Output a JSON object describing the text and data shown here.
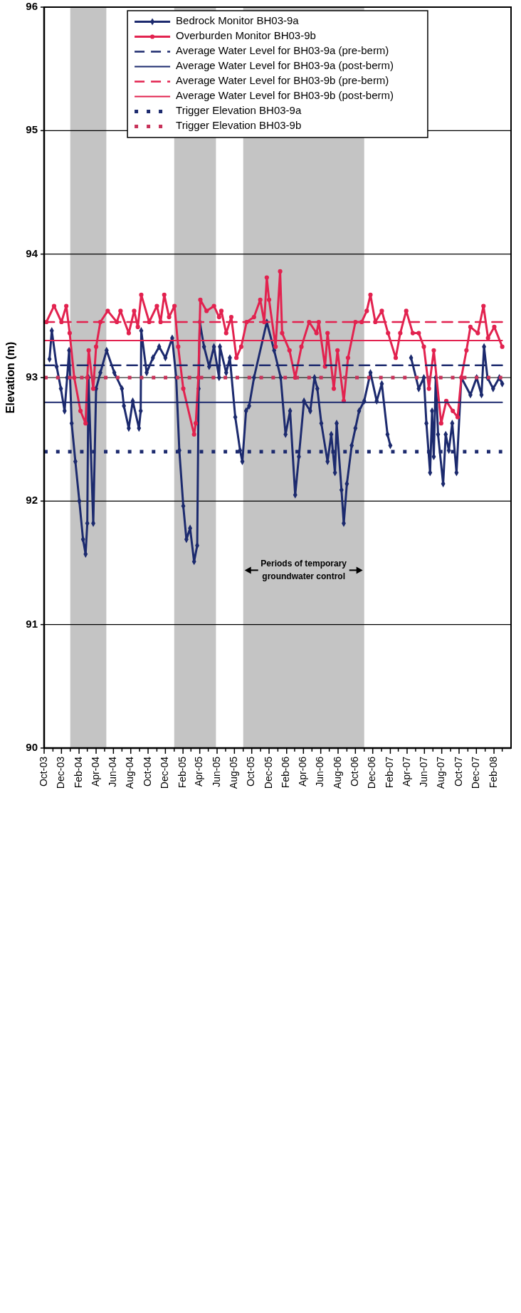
{
  "chart_data": {
    "type": "line",
    "xlabel": null,
    "ylabel": "Elevation (m)",
    "ylim": [
      90,
      96
    ],
    "yticks": [
      90,
      91,
      92,
      93,
      94,
      95,
      96
    ],
    "xlim": [
      "2003-10-01",
      "2008-04-01"
    ],
    "xticks": [
      {
        "value": "2003-10",
        "label": "Oct-03"
      },
      {
        "value": "2003-11",
        "label": null
      },
      {
        "value": "2003-12",
        "label": "Dec-03"
      },
      {
        "value": "2004-01",
        "label": null
      },
      {
        "value": "2004-02",
        "label": "Feb-04"
      },
      {
        "value": "2004-03",
        "label": null
      },
      {
        "value": "2004-04",
        "label": "Apr-04"
      },
      {
        "value": "2004-05",
        "label": null
      },
      {
        "value": "2004-06",
        "label": "Jun-04"
      },
      {
        "value": "2004-07",
        "label": null
      },
      {
        "value": "2004-08",
        "label": "Aug-04"
      },
      {
        "value": "2004-09",
        "label": null
      },
      {
        "value": "2004-10",
        "label": "Oct-04"
      },
      {
        "value": "2004-11",
        "label": null
      },
      {
        "value": "2004-12",
        "label": "Dec-04"
      },
      {
        "value": "2005-01",
        "label": null
      },
      {
        "value": "2005-02",
        "label": "Feb-05"
      },
      {
        "value": "2005-03",
        "label": null
      },
      {
        "value": "2005-04",
        "label": "Apr-05"
      },
      {
        "value": "2005-05",
        "label": null
      },
      {
        "value": "2005-06",
        "label": "Jun-05"
      },
      {
        "value": "2005-07",
        "label": null
      },
      {
        "value": "2005-08",
        "label": "Aug-05"
      },
      {
        "value": "2005-09",
        "label": null
      },
      {
        "value": "2005-10",
        "label": "Oct-05"
      },
      {
        "value": "2005-11",
        "label": null
      },
      {
        "value": "2005-12",
        "label": "Dec-05"
      },
      {
        "value": "2006-01",
        "label": null
      },
      {
        "value": "2006-02",
        "label": "Feb-06"
      },
      {
        "value": "2006-03",
        "label": null
      },
      {
        "value": "2006-04",
        "label": "Apr-06"
      },
      {
        "value": "2006-05",
        "label": null
      },
      {
        "value": "2006-06",
        "label": "Jun-06"
      },
      {
        "value": "2006-07",
        "label": null
      },
      {
        "value": "2006-08",
        "label": "Aug-06"
      },
      {
        "value": "2006-09",
        "label": null
      },
      {
        "value": "2006-10",
        "label": "Oct-06"
      },
      {
        "value": "2006-11",
        "label": null
      },
      {
        "value": "2006-12",
        "label": "Dec-06"
      },
      {
        "value": "2007-01",
        "label": null
      },
      {
        "value": "2007-02",
        "label": "Feb-07"
      },
      {
        "value": "2007-03",
        "label": null
      },
      {
        "value": "2007-04",
        "label": "Apr-07"
      },
      {
        "value": "2007-05",
        "label": null
      },
      {
        "value": "2007-06",
        "label": "Jun-07"
      },
      {
        "value": "2007-07",
        "label": null
      },
      {
        "value": "2007-08",
        "label": "Aug-07"
      },
      {
        "value": "2007-09",
        "label": null
      },
      {
        "value": "2007-10",
        "label": "Oct-07"
      },
      {
        "value": "2007-11",
        "label": null
      },
      {
        "value": "2007-12",
        "label": "Dec-07"
      },
      {
        "value": "2008-01",
        "label": null
      },
      {
        "value": "2008-02",
        "label": "Feb-08"
      },
      {
        "value": "2008-03",
        "label": null
      }
    ],
    "grid": "y",
    "legend": "top",
    "bands": [
      {
        "axis": "x",
        "from": "2004-01-01",
        "to": "2004-05-07",
        "color": "#c4c4c4"
      },
      {
        "axis": "x",
        "from": "2005-01-01",
        "to": "2005-05-28",
        "color": "#c4c4c4"
      },
      {
        "axis": "x",
        "from": "2005-09-01",
        "to": "2006-11-01",
        "color": "#c4c4c4"
      }
    ],
    "annotations": [
      "Periods of temporary groundwater control"
    ],
    "series": [
      {
        "name": "Bedrock Monitor BH03-9a",
        "color": "#1c2a6e",
        "marker": "diamond",
        "line_style": "solid",
        "x": [
          "2003-10-20",
          "2003-10-28",
          "2003-11-14",
          "2003-11-29",
          "2003-12-12",
          "2003-12-21",
          "2003-12-28",
          "2004-01-06",
          "2004-01-19",
          "2004-02-02",
          "2004-02-15",
          "2004-02-24",
          "2004-03-01",
          "2004-03-05",
          "2004-03-22",
          "2004-04-01",
          "2004-04-16",
          "2004-05-08",
          "2004-06-04",
          "2004-07-01",
          "2004-07-08",
          "2004-07-25",
          "2004-08-08",
          "2004-08-30",
          "2004-09-05",
          "2004-09-07",
          "2004-09-26",
          "2004-10-18",
          "2004-11-09",
          "2004-12-01",
          "2004-12-25",
          "2005-01-08",
          "2005-01-19",
          "2005-02-02",
          "2005-02-13",
          "2005-02-26",
          "2005-03-12",
          "2005-03-23",
          "2005-03-28",
          "2005-04-01",
          "2005-04-16",
          "2005-05-04",
          "2005-05-21",
          "2005-06-08",
          "2005-06-11",
          "2005-07-03",
          "2005-07-16",
          "2005-08-04",
          "2005-08-21",
          "2005-08-29",
          "2005-09-11",
          "2005-09-22",
          "2005-10-09",
          "2005-11-23",
          "2005-12-19",
          "2006-01-11",
          "2006-01-28",
          "2006-02-13",
          "2006-03-03",
          "2006-03-16",
          "2006-04-03",
          "2006-04-25",
          "2006-05-10",
          "2006-05-20",
          "2006-06-03",
          "2006-06-25",
          "2006-07-08",
          "2006-07-21",
          "2006-07-27",
          "2006-08-13",
          "2006-08-21",
          "2006-09-01",
          "2006-09-18",
          "2006-10-01",
          "2006-10-14",
          "2006-11-01",
          "2006-11-23",
          "2006-12-15",
          "2007-01-02",
          "2007-01-22",
          "2007-02-01",
          "2007-03-10",
          "2007-04-15",
          "2007-05-12",
          "2007-05-30",
          "2007-06-08",
          "2007-06-21",
          "2007-06-28",
          "2007-07-04",
          "2007-07-11",
          "2007-07-19",
          "2007-08-06",
          "2007-08-15",
          "2007-08-26",
          "2007-09-07",
          "2007-09-22",
          "2007-10-09",
          "2007-11-10",
          "2007-12-02",
          "2007-12-19",
          "2007-12-28",
          "2008-01-09",
          "2008-01-29",
          "2008-02-20",
          "2008-03-01"
        ],
        "values": [
          93.15,
          93.38,
          93.09,
          92.91,
          92.73,
          93.0,
          93.22,
          92.63,
          92.32,
          92.0,
          91.69,
          91.57,
          91.82,
          93.0,
          91.82,
          92.91,
          93.04,
          93.22,
          93.04,
          92.91,
          92.77,
          92.59,
          92.81,
          92.59,
          92.73,
          93.38,
          93.04,
          93.16,
          93.25,
          93.16,
          93.32,
          93.0,
          92.41,
          91.96,
          91.69,
          91.78,
          91.51,
          91.64,
          92.91,
          93.45,
          93.25,
          93.09,
          93.25,
          93.0,
          93.25,
          93.04,
          93.16,
          92.68,
          92.41,
          92.32,
          92.73,
          92.77,
          93.0,
          93.45,
          93.22,
          93.0,
          92.54,
          92.73,
          92.05,
          92.36,
          92.81,
          92.73,
          93.0,
          92.91,
          92.63,
          92.32,
          92.54,
          92.23,
          92.63,
          92.09,
          91.82,
          92.14,
          92.45,
          92.59,
          92.73,
          92.81,
          93.04,
          92.81,
          92.95,
          92.54,
          92.45,
          null,
          93.16,
          92.91,
          93.0,
          92.63,
          92.23,
          92.73,
          92.36,
          93.0,
          92.54,
          92.14,
          92.54,
          92.41,
          92.63,
          92.23,
          93.0,
          92.86,
          93.0,
          92.86,
          93.25,
          93.0,
          92.91,
          93.0,
          92.95
        ]
      },
      {
        "name": "Overburden Monitor BH03-9b",
        "color": "#e2224f",
        "marker": "circle",
        "line_style": "solid",
        "x": [
          "2003-10-09",
          "2003-11-05",
          "2003-12-01",
          "2003-12-18",
          "2003-12-30",
          "2004-01-15",
          "2004-02-06",
          "2004-02-24",
          "2004-03-01",
          "2004-03-06",
          "2004-03-22",
          "2004-04-01",
          "2004-04-16",
          "2004-05-12",
          "2004-06-13",
          "2004-06-26",
          "2004-07-25",
          "2004-08-13",
          "2004-08-26",
          "2004-09-07",
          "2004-10-05",
          "2004-11-01",
          "2004-11-14",
          "2004-11-27",
          "2004-12-14",
          "2005-01-02",
          "2005-01-15",
          "2005-02-02",
          "2005-03-12",
          "2005-03-18",
          "2005-03-27",
          "2005-04-03",
          "2005-04-25",
          "2005-05-21",
          "2005-06-08",
          "2005-06-16",
          "2005-07-03",
          "2005-07-21",
          "2005-08-08",
          "2005-08-25",
          "2005-09-13",
          "2005-10-09",
          "2005-10-31",
          "2005-11-14",
          "2005-11-23",
          "2005-12-01",
          "2005-12-24",
          "2006-01-09",
          "2006-01-16",
          "2006-02-11",
          "2006-03-03",
          "2006-03-25",
          "2006-04-21",
          "2006-05-17",
          "2006-05-25",
          "2006-06-16",
          "2006-06-25",
          "2006-07-17",
          "2006-07-30",
          "2006-08-21",
          "2006-09-05",
          "2006-10-01",
          "2006-10-23",
          "2006-11-10",
          "2006-11-23",
          "2006-12-10",
          "2007-01-02",
          "2007-01-24",
          "2007-02-20",
          "2007-03-08",
          "2007-03-29",
          "2007-04-21",
          "2007-05-12",
          "2007-05-30",
          "2007-06-17",
          "2007-07-04",
          "2007-07-30",
          "2007-08-17",
          "2007-09-09",
          "2007-09-26",
          "2007-10-09",
          "2007-10-27",
          "2007-11-10",
          "2007-12-06",
          "2007-12-26",
          "2008-01-11",
          "2008-02-02",
          "2008-03-01"
        ],
        "values": [
          93.45,
          93.58,
          93.45,
          93.58,
          93.36,
          93.0,
          92.73,
          92.63,
          93.0,
          93.22,
          92.91,
          93.25,
          93.45,
          93.54,
          93.45,
          93.54,
          93.36,
          93.54,
          93.41,
          93.67,
          93.45,
          93.58,
          93.45,
          93.67,
          93.49,
          93.58,
          93.25,
          92.91,
          92.54,
          92.63,
          93.0,
          93.63,
          93.54,
          93.58,
          93.49,
          93.54,
          93.36,
          93.49,
          93.16,
          93.25,
          93.45,
          93.49,
          93.63,
          93.45,
          93.81,
          93.63,
          93.25,
          93.86,
          93.36,
          93.22,
          93.0,
          93.25,
          93.45,
          93.36,
          93.45,
          93.09,
          93.36,
          92.91,
          93.22,
          92.81,
          93.16,
          93.45,
          93.45,
          93.54,
          93.67,
          93.45,
          93.54,
          93.36,
          93.16,
          93.36,
          93.54,
          93.36,
          93.36,
          93.25,
          92.91,
          93.22,
          92.63,
          92.81,
          92.73,
          92.68,
          93.0,
          93.22,
          93.41,
          93.36,
          93.58,
          93.32,
          93.41,
          93.25
        ]
      },
      {
        "name": "Average Water Level for BH03-9a (pre-berm)",
        "color": "#1c2a6e",
        "marker": "none",
        "line_style": "dashed",
        "x": [
          "2003-10-01",
          "2008-03-01"
        ],
        "values": [
          93.1,
          93.1
        ]
      },
      {
        "name": "Average Water Level for BH03-9a (post-berm)",
        "color": "#1c2a6e",
        "marker": "none",
        "line_style": "solid",
        "x": [
          "2003-10-01",
          "2008-03-01"
        ],
        "values": [
          92.8,
          92.8
        ]
      },
      {
        "name": "Average Water Level for BH03-9b (pre-berm)",
        "color": "#e2224f",
        "marker": "none",
        "line_style": "dashed",
        "x": [
          "2003-10-01",
          "2008-03-01"
        ],
        "values": [
          93.45,
          93.45
        ]
      },
      {
        "name": "Average Water Level for BH03-9b (post-berm)",
        "color": "#e2224f",
        "marker": "none",
        "line_style": "solid",
        "x": [
          "2003-10-01",
          "2008-03-01"
        ],
        "values": [
          93.3,
          93.3
        ]
      },
      {
        "name": "Trigger Elevation BH03-9a",
        "color": "#1c2a6e",
        "marker": "none",
        "line_style": "dotted",
        "x": [
          "2003-10-01",
          "2008-03-01"
        ],
        "values": [
          92.4,
          92.4
        ]
      },
      {
        "name": "Trigger Elevation BH03-9b",
        "color": "#c8325a",
        "marker": "none",
        "line_style": "dotted",
        "x": [
          "2003-10-01",
          "2008-03-01"
        ],
        "values": [
          93.0,
          93.0
        ]
      }
    ]
  }
}
